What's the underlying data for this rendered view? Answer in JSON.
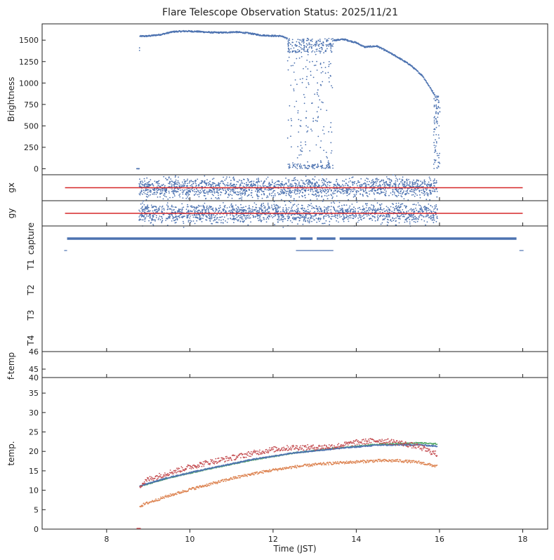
{
  "title": "Flare Telescope Observation Status: 2025/11/21",
  "colors": {
    "blue": "#4c72b0",
    "red": "#d62728",
    "green": "#55a868",
    "orange": "#dd8452",
    "darkred": "#c44e52",
    "axis": "#222222"
  },
  "chart_data": [
    {
      "type": "scatter",
      "panel": "brightness",
      "ylabel": "Brightness",
      "xlim": [
        6.45,
        18.6
      ],
      "ylim": [
        -70,
        1690
      ],
      "yticks": [
        0,
        250,
        500,
        750,
        1000,
        1250,
        1500
      ],
      "series": [
        {
          "points": [
            [
              8.72,
              0
            ],
            [
              8.78,
              0
            ],
            [
              8.8,
              1545
            ],
            [
              9.0,
              1548
            ],
            [
              9.3,
              1565
            ],
            [
              9.6,
              1598
            ],
            [
              9.9,
              1605
            ],
            [
              10.2,
              1600
            ],
            [
              10.5,
              1590
            ],
            [
              10.8,
              1588
            ],
            [
              11.1,
              1595
            ],
            [
              11.4,
              1582
            ],
            [
              11.7,
              1558
            ],
            [
              12.0,
              1550
            ],
            [
              12.2,
              1548
            ],
            [
              12.32,
              1520
            ],
            [
              12.4,
              1440
            ],
            [
              12.5,
              1300
            ],
            [
              12.7,
              0
            ],
            [
              12.9,
              1300
            ],
            [
              13.1,
              1480
            ],
            [
              13.3,
              0
            ],
            [
              13.5,
              1500
            ],
            [
              13.7,
              1510
            ],
            [
              14.0,
              1470
            ],
            [
              14.2,
              1420
            ],
            [
              14.5,
              1430
            ],
            [
              14.7,
              1380
            ],
            [
              15.0,
              1300
            ],
            [
              15.3,
              1210
            ],
            [
              15.6,
              1080
            ],
            [
              15.9,
              850
            ],
            [
              15.95,
              600
            ],
            [
              16.0,
              300
            ]
          ],
          "noisy_x_ranges": [
            [
              12.35,
              13.45
            ],
            [
              15.85,
              16.05
            ]
          ],
          "noisy_y_range": [
            0,
            1520
          ]
        }
      ]
    },
    {
      "type": "scatter",
      "panel": "gx",
      "ylabel": "gx",
      "xlim": [
        6.45,
        18.6
      ],
      "points_x_range": [
        8.78,
        15.95
      ],
      "reference_line": {
        "x": [
          7.0,
          18.0
        ],
        "level": 0.5
      }
    },
    {
      "type": "scatter",
      "panel": "gy",
      "ylabel": "gy",
      "xlim": [
        6.45,
        18.6
      ],
      "points_x_range": [
        8.78,
        15.95
      ],
      "reference_line": {
        "x": [
          7.0,
          18.0
        ],
        "level": 0.5
      }
    },
    {
      "type": "scatter",
      "panel": "capture",
      "yticklabels": [
        "capture",
        "T1",
        "T2",
        "T3",
        "T4"
      ],
      "xlim": [
        6.45,
        18.6
      ],
      "segments": [
        {
          "row": "capture",
          "x": [
            7.05,
            12.55
          ]
        },
        {
          "row": "capture",
          "x": [
            12.65,
            12.95
          ]
        },
        {
          "row": "capture",
          "x": [
            13.05,
            13.5
          ]
        },
        {
          "row": "capture",
          "x": [
            13.6,
            17.85
          ]
        },
        {
          "row": "T1",
          "x": [
            6.98,
            7.05
          ]
        },
        {
          "row": "T1",
          "x": [
            12.55,
            13.45
          ]
        },
        {
          "row": "T1",
          "x": [
            17.92,
            18.02
          ]
        }
      ]
    },
    {
      "type": "scatter",
      "panel": "f-temp",
      "ylabel": "f-temp",
      "xlim": [
        6.45,
        18.6
      ],
      "ylim": [
        44,
        46
      ],
      "yticks": [
        45,
        46
      ]
    },
    {
      "type": "scatter",
      "panel": "temp",
      "ylabel": "temp.",
      "xlabel": "Time (JST)",
      "xlim": [
        6.45,
        18.6
      ],
      "ylim": [
        0,
        39
      ],
      "yticks": [
        0,
        5,
        10,
        15,
        20,
        25,
        30,
        35
      ],
      "xticks": [
        8,
        10,
        12,
        14,
        16,
        18
      ],
      "series": [
        {
          "color": "green",
          "values": [
            [
              8.8,
              11
            ],
            [
              9.5,
              13.2
            ],
            [
              10.5,
              15.6
            ],
            [
              11.5,
              17.8
            ],
            [
              12.5,
              19.6
            ],
            [
              13.5,
              20.8
            ],
            [
              14.5,
              21.8
            ],
            [
              15.5,
              22.2
            ],
            [
              15.95,
              21.9
            ]
          ]
        },
        {
          "color": "blue",
          "values": [
            [
              8.8,
              11.1
            ],
            [
              9.5,
              13.3
            ],
            [
              10.5,
              15.7
            ],
            [
              11.5,
              17.9
            ],
            [
              12.5,
              19.6
            ],
            [
              13.5,
              20.7
            ],
            [
              14.5,
              21.6
            ],
            [
              15.5,
              21.7
            ],
            [
              15.95,
              21.3
            ]
          ]
        },
        {
          "color": "darkred",
          "values": [
            [
              8.8,
              11.2
            ],
            [
              9.0,
              12.8
            ],
            [
              9.5,
              14.5
            ],
            [
              10.0,
              16.0
            ],
            [
              10.5,
              17.3
            ],
            [
              11.0,
              18.3
            ],
            [
              11.5,
              19.5
            ],
            [
              12.0,
              20.5
            ],
            [
              12.5,
              21.0
            ],
            [
              13.0,
              21.0
            ],
            [
              13.5,
              21.3
            ],
            [
              14.0,
              22.3
            ],
            [
              14.5,
              22.8
            ],
            [
              15.0,
              22.3
            ],
            [
              15.5,
              21.2
            ],
            [
              15.95,
              19.2
            ]
          ],
          "noise": 0.7
        },
        {
          "color": "orange",
          "values": [
            [
              8.8,
              5.9
            ],
            [
              9.0,
              6.8
            ],
            [
              9.5,
              8.6
            ],
            [
              10.0,
              10.2
            ],
            [
              10.5,
              11.6
            ],
            [
              11.0,
              13.0
            ],
            [
              11.5,
              14.2
            ],
            [
              12.0,
              15.2
            ],
            [
              12.5,
              16.0
            ],
            [
              13.0,
              16.6
            ],
            [
              13.5,
              17.0
            ],
            [
              14.0,
              17.3
            ],
            [
              14.5,
              17.6
            ],
            [
              15.0,
              17.6
            ],
            [
              15.5,
              17.2
            ],
            [
              15.95,
              16.1
            ]
          ],
          "noise": 0.35
        }
      ]
    }
  ]
}
